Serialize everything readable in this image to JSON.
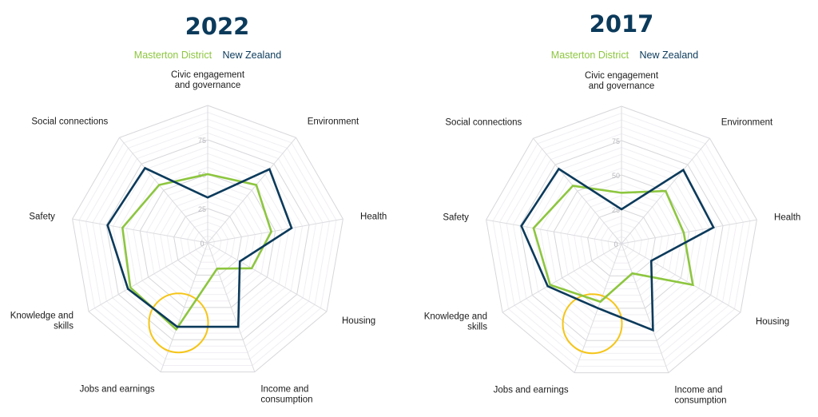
{
  "chart_data": [
    {
      "type": "radar",
      "title": "2022",
      "axes": [
        "Civic engagement and governance",
        "Environment",
        "Health",
        "Housing",
        "Income and consumption",
        "Jobs and earnings",
        "Knowledge and skills",
        "Safety",
        "Social connections"
      ],
      "axis_label_lines": [
        [
          "Civic engagement",
          "and governance"
        ],
        [
          "Environment"
        ],
        [
          "Health"
        ],
        [
          "Housing"
        ],
        [
          "Income and",
          "consumption"
        ],
        [
          "Jobs and earnings"
        ],
        [
          "Knowledge and",
          "skills"
        ],
        [
          "Safety"
        ],
        [
          "Social connections"
        ]
      ],
      "rlim": [
        0,
        100
      ],
      "ticks": [
        0,
        25,
        50,
        75
      ],
      "series": [
        {
          "name": "Masterton District",
          "color": "#8dc63f",
          "values": [
            50,
            55,
            47,
            37,
            20,
            67,
            65,
            63,
            55
          ]
        },
        {
          "name": "New Zealand",
          "color": "#0b3a5b",
          "values": [
            33,
            70,
            62,
            27,
            65,
            65,
            67,
            74,
            71
          ]
        }
      ],
      "highlight": {
        "axis": "Jobs and earnings",
        "color": "#f5c518"
      }
    },
    {
      "type": "radar",
      "title": "2017",
      "axes": [
        "Civic engagement and governance",
        "Environment",
        "Health",
        "Housing",
        "Income and consumption",
        "Jobs and earnings",
        "Knowledge and skills",
        "Safety",
        "Social connections"
      ],
      "axis_label_lines": [
        [
          "Civic engagement",
          "and governance"
        ],
        [
          "Environment"
        ],
        [
          "Health"
        ],
        [
          "Housing"
        ],
        [
          "Income and",
          "consumption"
        ],
        [
          "Jobs and earnings"
        ],
        [
          "Knowledge and",
          "skills"
        ],
        [
          "Safety"
        ],
        [
          "Social connections"
        ]
      ],
      "rlim": [
        0,
        100
      ],
      "ticks": [
        0,
        25,
        50,
        75
      ],
      "series": [
        {
          "name": "Masterton District",
          "color": "#8dc63f",
          "values": [
            37,
            50,
            46,
            60,
            23,
            45,
            60,
            65,
            55
          ]
        },
        {
          "name": "New Zealand",
          "color": "#0b3a5b",
          "values": [
            25,
            70,
            68,
            25,
            67,
            50,
            62,
            74,
            71
          ]
        }
      ],
      "highlight": {
        "axis": "Jobs and earnings",
        "color": "#f5c518"
      }
    }
  ]
}
